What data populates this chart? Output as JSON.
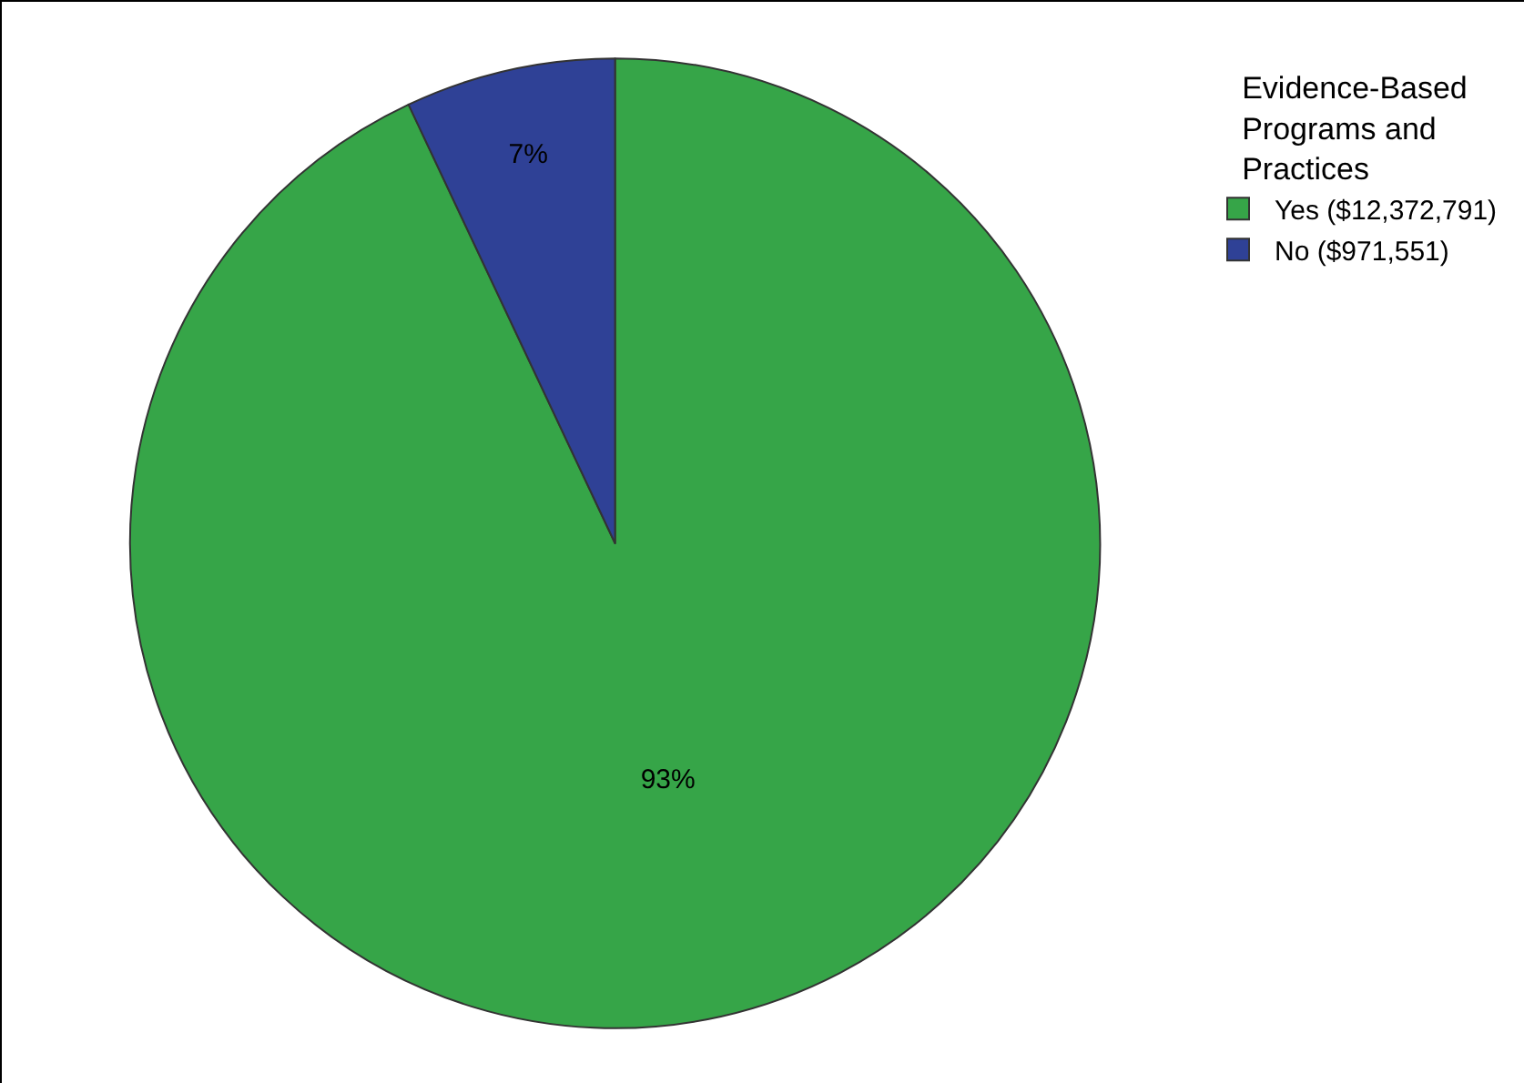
{
  "chart_data": {
    "type": "pie",
    "legend_title": "Evidence-Based Programs and Practices",
    "categories": [
      "Yes ($12,372,791)",
      "No ($971,551)"
    ],
    "values": [
      93,
      7
    ],
    "value_labels": [
      "93%",
      "7%"
    ],
    "colors": [
      "#36a548",
      "#2f4196"
    ],
    "legend": "top right"
  }
}
